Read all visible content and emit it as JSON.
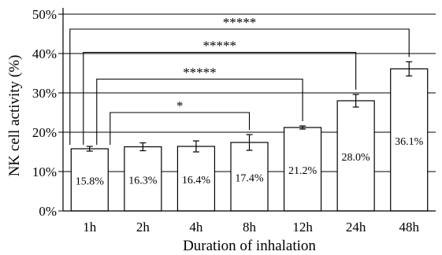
{
  "chart_data": {
    "type": "bar",
    "title": "",
    "xlabel": "Duration of inhalation",
    "ylabel": "NK cell activity (%)",
    "ylim": [
      0,
      50
    ],
    "yticks": [
      "0%",
      "10%",
      "20%",
      "30%",
      "40%",
      "50%"
    ],
    "grid": true,
    "categories": [
      "1h",
      "2h",
      "4h",
      "8h",
      "12h",
      "24h",
      "48h"
    ],
    "values": [
      15.8,
      16.3,
      16.4,
      17.4,
      21.2,
      28.0,
      36.1
    ],
    "errors": [
      0.6,
      1.0,
      1.4,
      2.0,
      0.4,
      1.6,
      1.8
    ],
    "data_labels": [
      "15.8%",
      "16.3%",
      "16.4%",
      "17.4%",
      "21.2%",
      "28.0%",
      "36.1%"
    ],
    "significance": [
      {
        "from": "1h",
        "to": "48h",
        "label": "*****"
      },
      {
        "from": "1h",
        "to": "24h",
        "label": "*****"
      },
      {
        "from": "1h",
        "to": "12h",
        "label": "*****"
      },
      {
        "from": "1h",
        "to": "8h",
        "label": "*"
      }
    ],
    "colors": {
      "bar_fill": "#ffffff",
      "stroke": "#000000",
      "grid": "#000000"
    }
  }
}
